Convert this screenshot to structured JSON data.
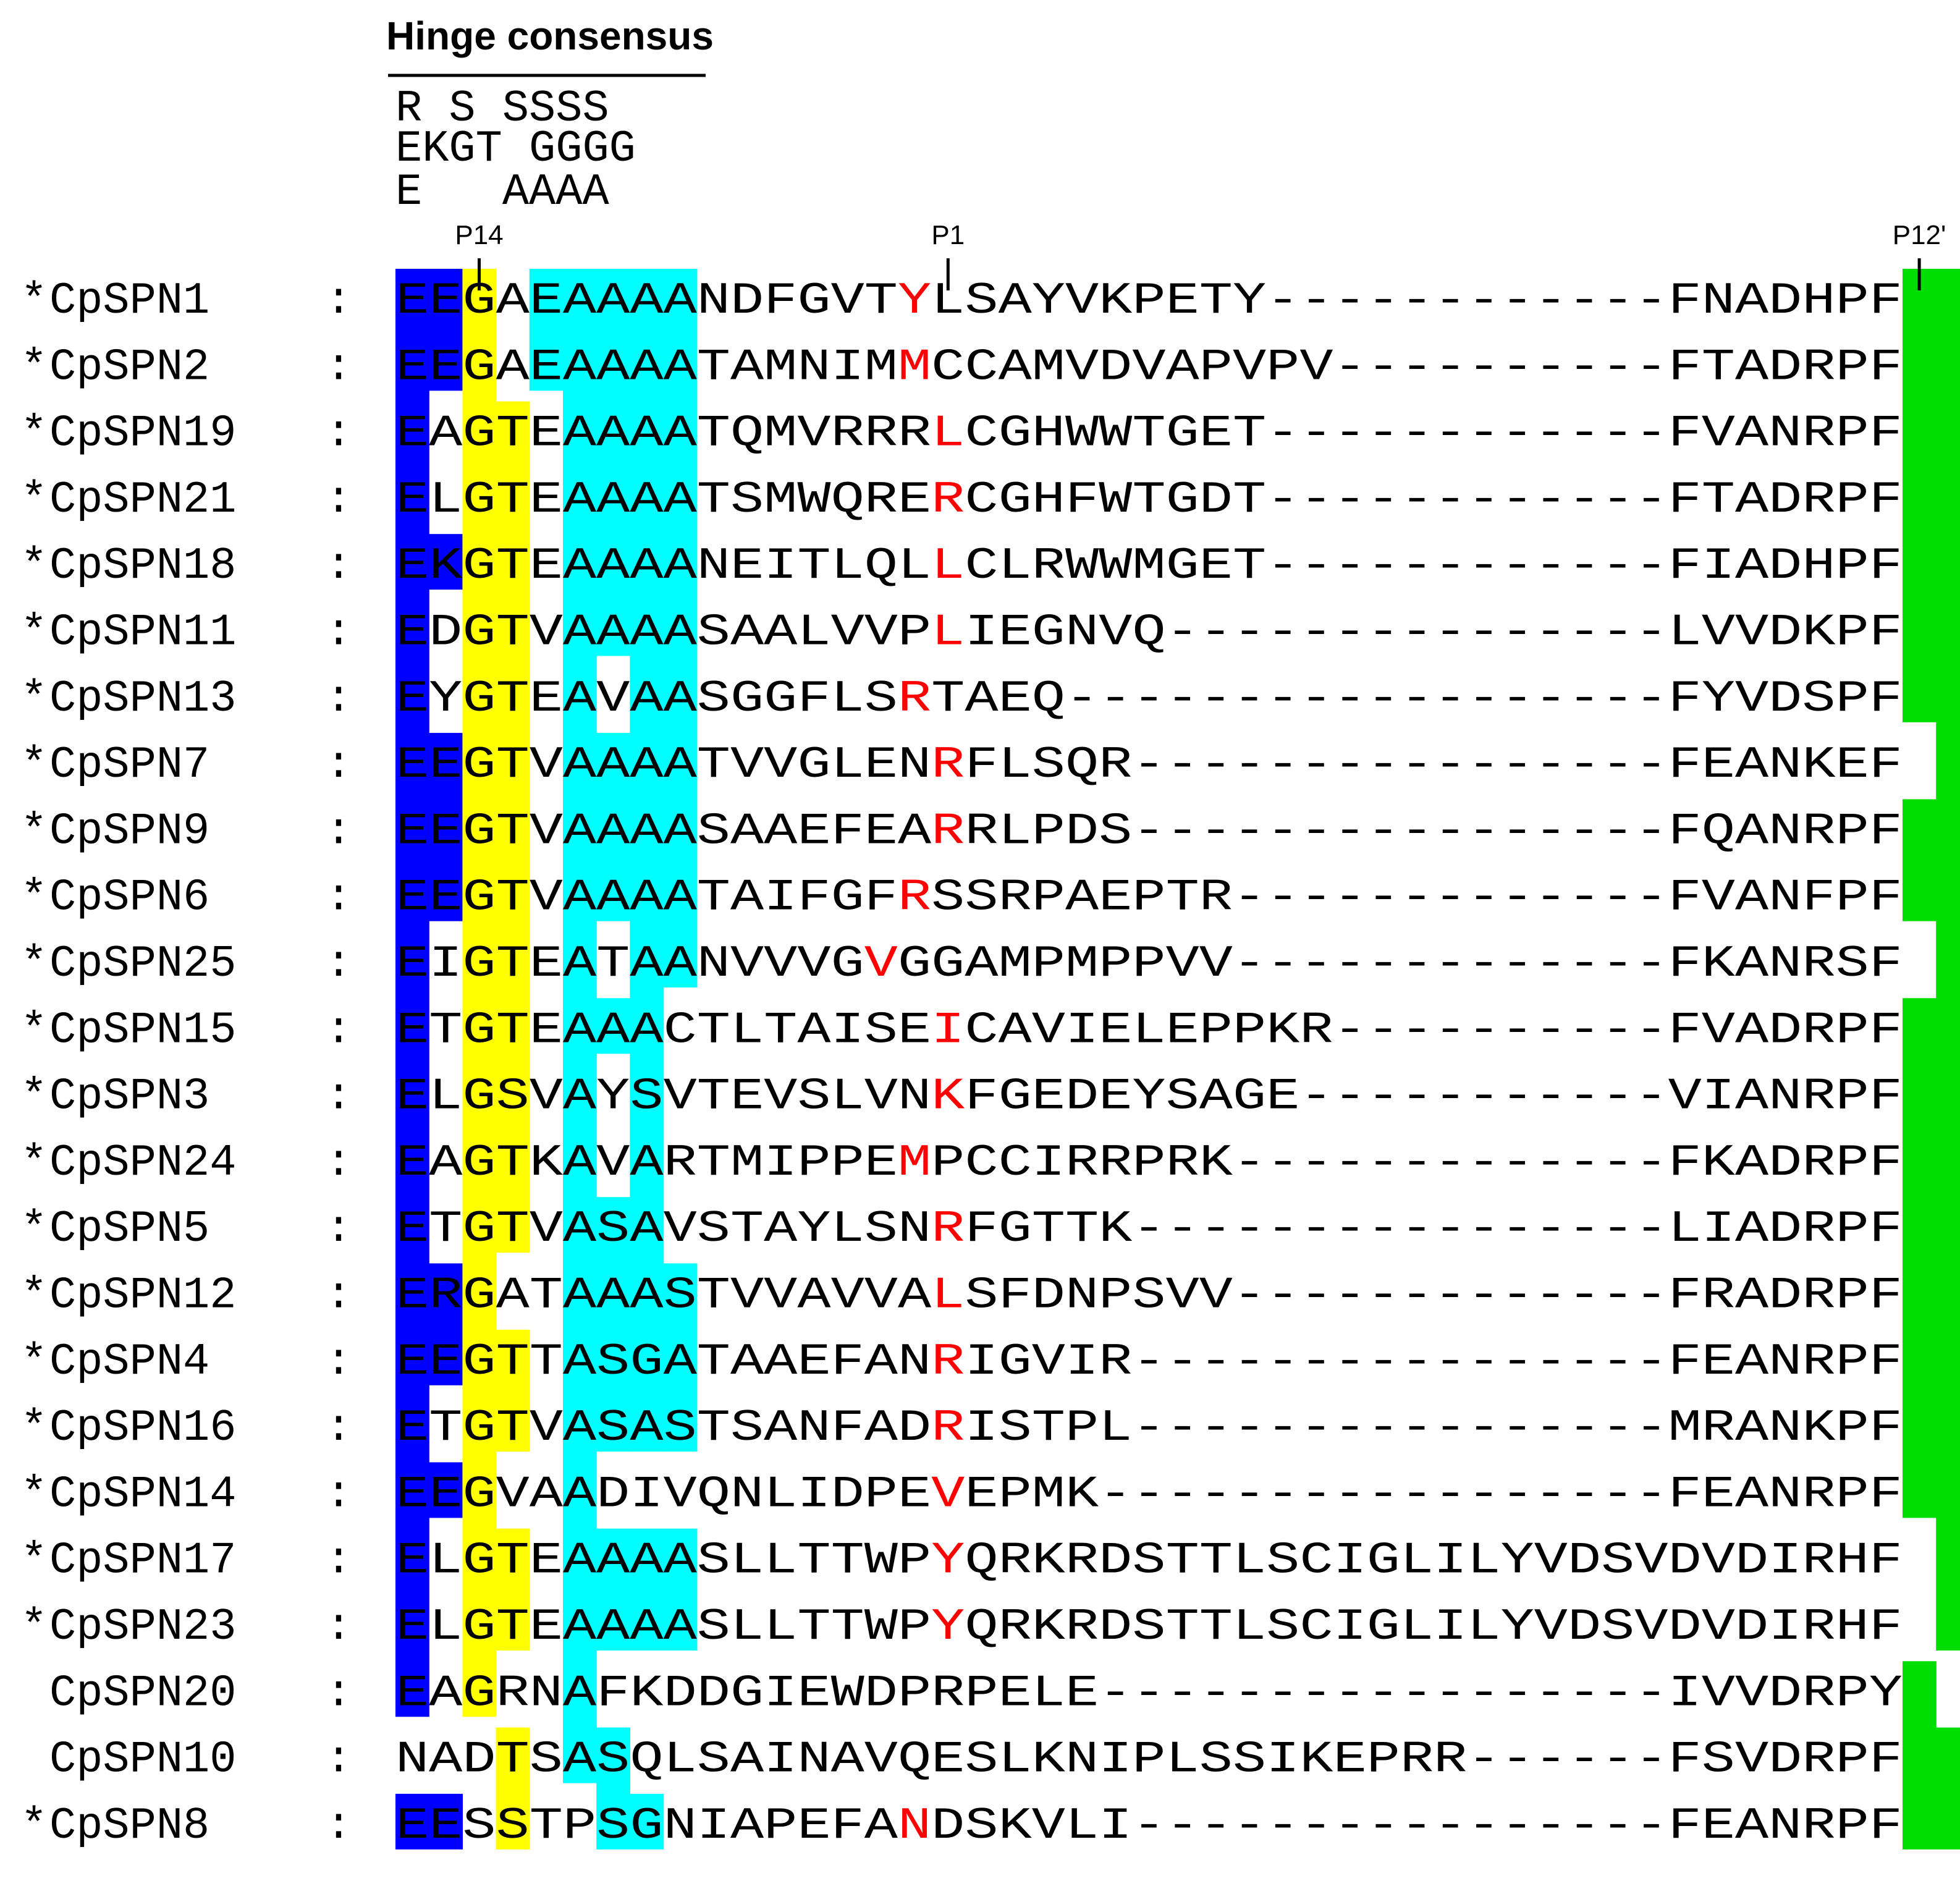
{
  "title": "Hinge consensus",
  "consensus_rows": [
    "R S SSSS",
    "EKGT GGGG",
    "E   AAAA"
  ],
  "markers": [
    {
      "label": "P14",
      "column": 2
    },
    {
      "label": "P1",
      "column": 16
    },
    {
      "label": "P12'",
      "column": 45
    }
  ],
  "colors": {
    "blue": "#0000ff",
    "yellow": "#ffff00",
    "cyan": "#00ffff",
    "green": "#00dd00",
    "red": "#ff0000",
    "black": "#000000"
  },
  "sequences": [
    {
      "star": "*",
      "name": "CpSPN1",
      "separator": ":",
      "seq": "EEGAEAAAANDFGVTYLSAYVKPETY------------FNADHPF",
      "p1": 15,
      "hl": {
        "blue": [
          0,
          1
        ],
        "yellow": [
          2
        ],
        "cyan": [
          4,
          5,
          6,
          7,
          8
        ],
        "green": [
          45,
          46
        ]
      }
    },
    {
      "star": "*",
      "name": "CpSPN2",
      "separator": ":",
      "seq": "EEGAEAAAATAMNIMMCCAMVDVAPVPV----------FTADRPF",
      "p1": 15,
      "hl": {
        "blue": [
          0,
          1
        ],
        "yellow": [
          2
        ],
        "cyan": [
          4,
          5,
          6,
          7,
          8
        ],
        "green": [
          45,
          46
        ]
      }
    },
    {
      "star": "*",
      "name": "CpSPN19",
      "separator": ":",
      "seq": "EAGTEAAAATQMVRRRLCGHWWTGET------------FVANRPF",
      "p1": 16,
      "hl": {
        "blue": [
          0
        ],
        "yellow": [
          2,
          3
        ],
        "cyan": [
          5,
          6,
          7,
          8
        ],
        "green": [
          45,
          46
        ]
      }
    },
    {
      "star": "*",
      "name": "CpSPN21",
      "separator": ":",
      "seq": "ELGTEAAAATSMWQRERCGHFWTGDT------------FTADRPF",
      "p1": 16,
      "hl": {
        "blue": [
          0
        ],
        "yellow": [
          2,
          3
        ],
        "cyan": [
          5,
          6,
          7,
          8
        ],
        "green": [
          45,
          46
        ]
      }
    },
    {
      "star": "*",
      "name": "CpSPN18",
      "separator": ":",
      "seq": "EKGTEAAAANEITLQLLCLRWWMGET------------FIADHPF",
      "p1": 16,
      "hl": {
        "blue": [
          0,
          1
        ],
        "yellow": [
          2,
          3
        ],
        "cyan": [
          5,
          6,
          7,
          8
        ],
        "green": [
          45,
          46
        ]
      }
    },
    {
      "star": "*",
      "name": "CpSPN11",
      "separator": ":",
      "seq": "EDGTVAAAASAALVVPLIEGNVQ---------------LVVDKPF",
      "p1": 16,
      "hl": {
        "blue": [
          0
        ],
        "yellow": [
          2,
          3
        ],
        "cyan": [
          5,
          6,
          7,
          8
        ],
        "green": [
          45,
          46
        ]
      }
    },
    {
      "star": "*",
      "name": "CpSPN13",
      "separator": ":",
      "seq": "EYGTEAVAASGGFLSRTAEQ------------------FYVDSPF",
      "p1": 15,
      "hl": {
        "blue": [
          0
        ],
        "yellow": [
          2,
          3
        ],
        "cyan": [
          5,
          7,
          8
        ],
        "green": [
          45,
          46
        ]
      }
    },
    {
      "star": "*",
      "name": "CpSPN7",
      "separator": ":",
      "seq": "EEGTVAAAATVVGLENRFLSQR----------------FEANKEF",
      "p1": 16,
      "hl": {
        "blue": [
          0,
          1
        ],
        "yellow": [
          2,
          3
        ],
        "cyan": [
          5,
          6,
          7,
          8
        ],
        "green": [
          46
        ]
      }
    },
    {
      "star": "*",
      "name": "CpSPN9",
      "separator": ":",
      "seq": "EEGTVAAAASAAEFEARRLPDS----------------FQANRPF",
      "p1": 16,
      "hl": {
        "blue": [
          0,
          1
        ],
        "yellow": [
          2,
          3
        ],
        "cyan": [
          5,
          6,
          7,
          8
        ],
        "green": [
          45,
          46
        ]
      }
    },
    {
      "star": "*",
      "name": "CpSPN6",
      "separator": ":",
      "seq": "EEGTVAAAATAIFGFRSSRPAEPTR-------------FVANFPF",
      "p1": 15,
      "hl": {
        "blue": [
          0,
          1
        ],
        "yellow": [
          2,
          3
        ],
        "cyan": [
          5,
          6,
          7,
          8
        ],
        "green": [
          45,
          46
        ]
      }
    },
    {
      "star": "*",
      "name": "CpSPN25",
      "separator": ":",
      "seq": "EIGTEATAANVVVGVGGAMPMPPVV-------------FKANRSF",
      "p1": 14,
      "hl": {
        "blue": [
          0
        ],
        "yellow": [
          2,
          3
        ],
        "cyan": [
          5,
          7,
          8
        ],
        "green": [
          46
        ]
      }
    },
    {
      "star": "*",
      "name": "CpSPN15",
      "separator": ":",
      "seq": "ETGTEAAACTLTAISEICAVIELEPPKR----------FVADRPF",
      "p1": 16,
      "hl": {
        "blue": [
          0
        ],
        "yellow": [
          2,
          3
        ],
        "cyan": [
          5,
          6,
          7
        ],
        "green": [
          45,
          46
        ]
      }
    },
    {
      "star": "*",
      "name": "CpSPN3",
      "separator": ":",
      "seq": "ELGSVAYSVTEVSLVNKFGEDEYSAGE-----------VIANRPF",
      "p1": 16,
      "hl": {
        "blue": [
          0
        ],
        "yellow": [
          2,
          3
        ],
        "cyan": [
          5,
          7
        ],
        "green": [
          45,
          46
        ]
      }
    },
    {
      "star": "*",
      "name": "CpSPN24",
      "separator": ":",
      "seq": "EAGTKAVARTMIPPEMPCCIRRPRK-------------FKADRPF",
      "p1": 15,
      "hl": {
        "blue": [
          0
        ],
        "yellow": [
          2,
          3
        ],
        "cyan": [
          5,
          7
        ],
        "green": [
          45,
          46
        ]
      }
    },
    {
      "star": "*",
      "name": "CpSPN5",
      "separator": ":",
      "seq": "ETGTVASAVSTAYLSNRFGTTK----------------LIADRPF",
      "p1": 16,
      "hl": {
        "blue": [
          0
        ],
        "yellow": [
          2,
          3
        ],
        "cyan": [
          5,
          6,
          7
        ],
        "green": [
          45,
          46
        ]
      }
    },
    {
      "star": "*",
      "name": "CpSPN12",
      "separator": ":",
      "seq": "ERGATAAASTVVAVVALSFDNPSVV-------------FRADRPF",
      "p1": 16,
      "hl": {
        "blue": [
          0,
          1
        ],
        "yellow": [
          2
        ],
        "cyan": [
          5,
          6,
          7,
          8
        ],
        "green": [
          45,
          46
        ]
      }
    },
    {
      "star": "*",
      "name": "CpSPN4",
      "separator": ":",
      "seq": "EEGTTASGATAAEFANRIGVIR----------------FEANRPF",
      "p1": 16,
      "hl": {
        "blue": [
          0,
          1
        ],
        "yellow": [
          2,
          3
        ],
        "cyan": [
          5,
          6,
          7,
          8
        ],
        "green": [
          45,
          46
        ]
      }
    },
    {
      "star": "*",
      "name": "CpSPN16",
      "separator": ":",
      "seq": "ETGTVASASTSANFADRISTPL----------------MRANKPF",
      "p1": 16,
      "hl": {
        "blue": [
          0
        ],
        "yellow": [
          2,
          3
        ],
        "cyan": [
          5,
          6,
          7,
          8
        ],
        "green": [
          45,
          46
        ]
      }
    },
    {
      "star": "*",
      "name": "CpSPN14",
      "separator": ":",
      "seq": "EEGVAADIVQNLIDPEVEPMK-----------------FEANRPF",
      "p1": 16,
      "hl": {
        "blue": [
          0,
          1
        ],
        "yellow": [
          2
        ],
        "cyan": [
          5
        ],
        "green": [
          45,
          46
        ]
      }
    },
    {
      "star": "*",
      "name": "CpSPN17",
      "separator": ":",
      "seq": "ELGTEAAAASLLTTWPYQRKRDSTTLSCIGLILYVDSVDVDIRHF",
      "p1": 16,
      "hl": {
        "blue": [
          0
        ],
        "yellow": [
          2,
          3
        ],
        "cyan": [
          5,
          6,
          7,
          8
        ],
        "green": [
          46
        ]
      }
    },
    {
      "star": "*",
      "name": "CpSPN23",
      "separator": ":",
      "seq": "ELGTEAAAASLLTTWPYQRKRDSTTLSCIGLILYVDSVDVDIRHF",
      "p1": 16,
      "hl": {
        "blue": [
          0
        ],
        "yellow": [
          2,
          3
        ],
        "cyan": [
          5,
          6,
          7,
          8
        ],
        "green": [
          46
        ]
      }
    },
    {
      "star": "",
      "name": "CpSPN20",
      "separator": ":",
      "seq": "EAGRNAFKDDGIEWDPRPELE-----------------IVVDRPY",
      "p1": -1,
      "hl": {
        "blue": [
          0
        ],
        "yellow": [
          2
        ],
        "cyan": [
          5
        ],
        "green": [
          45
        ]
      }
    },
    {
      "star": "",
      "name": "CpSPN10",
      "separator": ":",
      "seq": "NADTSASQLSAINAVQESLKNIPLSSIKEPRR------FSVDRPF",
      "p1": -1,
      "hl": {
        "blue": [],
        "yellow": [
          3
        ],
        "cyan": [
          5,
          6
        ],
        "green": [
          45,
          46
        ]
      }
    },
    {
      "star": "*",
      "name": "CpSPN8",
      "separator": ":",
      "seq": "EESSTPSGNIAPEFANDSKVLI----------------FEANRPF",
      "p1": 15,
      "hl": {
        "blue": [
          0,
          1
        ],
        "yellow": [
          3
        ],
        "cyan": [
          6,
          7
        ],
        "green": [
          45,
          46
        ]
      }
    }
  ]
}
